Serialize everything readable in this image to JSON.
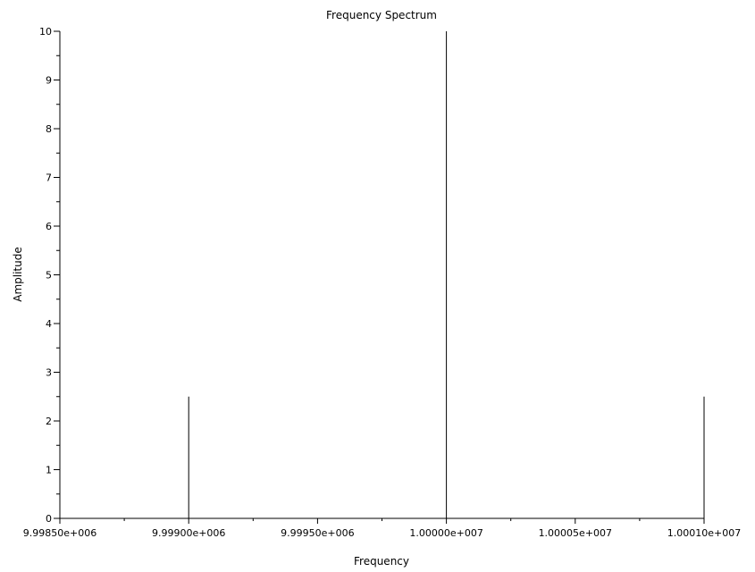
{
  "chart_data": {
    "type": "stem",
    "title": "Frequency Spectrum",
    "xlabel": "Frequency",
    "ylabel": "Amplitude",
    "xlim": [
      9998500,
      10001000
    ],
    "ylim": [
      0,
      10
    ],
    "x_ticks": [
      {
        "value": 9998500,
        "label": "9.99850e+006"
      },
      {
        "value": 9999000,
        "label": "9.99900e+006"
      },
      {
        "value": 9999500,
        "label": "9.99950e+006"
      },
      {
        "value": 10000000,
        "label": "1.00000e+007"
      },
      {
        "value": 10000500,
        "label": "1.00005e+007"
      },
      {
        "value": 10001000,
        "label": "1.00010e+007"
      }
    ],
    "y_ticks": [
      {
        "value": 0,
        "label": "0"
      },
      {
        "value": 1,
        "label": "1"
      },
      {
        "value": 2,
        "label": "2"
      },
      {
        "value": 3,
        "label": "3"
      },
      {
        "value": 4,
        "label": "4"
      },
      {
        "value": 5,
        "label": "5"
      },
      {
        "value": 6,
        "label": "6"
      },
      {
        "value": 7,
        "label": "7"
      },
      {
        "value": 8,
        "label": "8"
      },
      {
        "value": 9,
        "label": "9"
      },
      {
        "value": 10,
        "label": "10"
      }
    ],
    "minor_ticks_per_interval": 2,
    "series": [
      {
        "x": [
          9999000,
          10000000,
          10001000
        ],
        "y": [
          2.5,
          10,
          2.5
        ]
      }
    ],
    "grid": false,
    "line_color": "#000000"
  }
}
